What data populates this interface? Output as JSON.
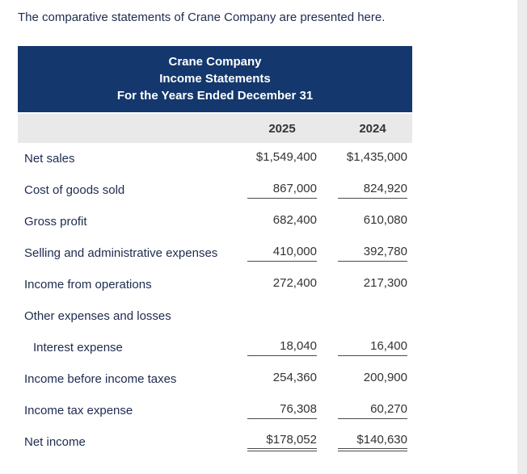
{
  "intro_text": "The comparative statements of Crane Company are presented here.",
  "table": {
    "title_lines": [
      "Crane Company",
      "Income Statements",
      "For the Years Ended December 31"
    ],
    "columns": [
      "2025",
      "2024"
    ],
    "rows": [
      {
        "label": "Net sales",
        "values": [
          "$1,549,400",
          "$1,435,000"
        ]
      },
      {
        "label": "Cost of goods sold",
        "values": [
          "867,000",
          "824,920"
        ]
      },
      {
        "label": "Gross profit",
        "values": [
          "682,400",
          "610,080"
        ]
      },
      {
        "label": "Selling and administrative expenses",
        "values": [
          "410,000",
          "392,780"
        ]
      },
      {
        "label": "Income from operations",
        "values": [
          "272,400",
          "217,300"
        ]
      },
      {
        "label": "Other expenses and losses",
        "values": [
          "",
          ""
        ]
      },
      {
        "label": "Interest expense",
        "values": [
          "18,040",
          "16,400"
        ]
      },
      {
        "label": "Income before income taxes",
        "values": [
          "254,360",
          "200,900"
        ]
      },
      {
        "label": "Income tax expense",
        "values": [
          "76,308",
          "60,270"
        ]
      },
      {
        "label": "Net income",
        "values": [
          "$178,052",
          "$140,630"
        ]
      }
    ]
  },
  "colors": {
    "header_bg": "#14386d",
    "header_text": "#ffffff",
    "column_header_bg": "#e9e9e9",
    "label_text": "#1d2b4f",
    "number_text": "#333333"
  }
}
